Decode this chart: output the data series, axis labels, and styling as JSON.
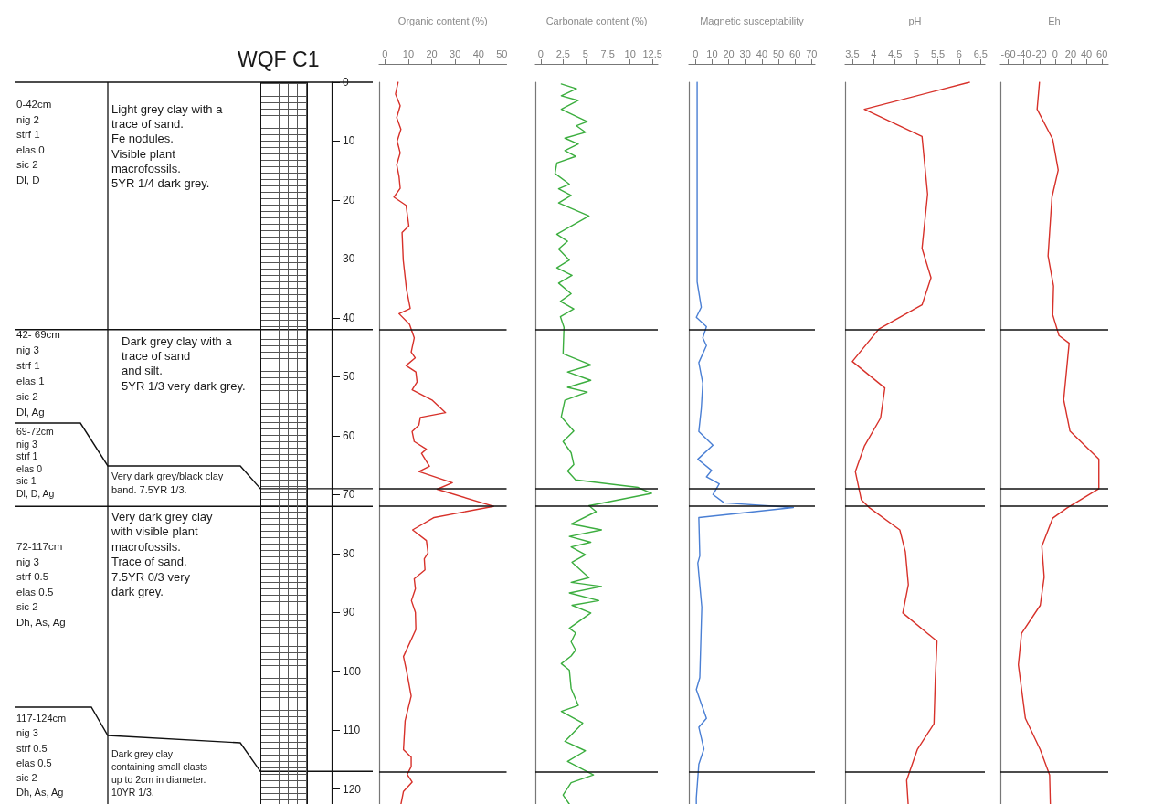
{
  "chart_data": [
    {
      "type": "other",
      "title": "WQF C1",
      "annotations": [
        "0-42cm\nnig 2\nstrf 1\nelas 0\nsic 2\nDl, D",
        "Light grey clay with a\ntrace of sand.\nFe nodules.\nVisible plant\nmacrofossils.\n5YR 1/4 dark grey.",
        "42- 69cm\nnig 3\nstrf 1\nelas 1\nsic 2\nDl, Ag",
        "Dark grey clay with a\ntrace of sand\nand silt.\n5YR 1/3 very dark grey.",
        "69-72cm\nnig 3\nstrf 1\nelas 0\nsic 1\nDl, D, Ag",
        "Very dark grey/black clay\nband. 7.5YR 1/3.",
        "72-117cm\nnig 3\nstrf 0.5\nelas 0.5\nsic 2\nDh, As, Ag",
        "Very dark grey clay\nwith visible plant\nmacrofossils.\nTrace of sand.\n7.5YR 0/3 very\ndark grey.",
        "117-124cm\nnig 3\nstrf 0.5\nelas 0.5\nsic 2\nDh, As, Ag",
        "Dark grey clay\ncontaining small clasts\nup to 2cm in diameter.\n10YR 1/3."
      ]
    },
    {
      "type": "line",
      "orientation": "horizontal",
      "xlabel": "Organic content (%)",
      "xlim": [
        -2.5,
        52
      ],
      "xticks": [
        0,
        10,
        20,
        30,
        40,
        50
      ],
      "ylim": [
        123,
        0
      ],
      "yticks": [
        0,
        10,
        20,
        30,
        40,
        50,
        60,
        70,
        80,
        90,
        100,
        110,
        120
      ],
      "grid": false,
      "ref_lines": [
        {
          "axis": "y",
          "value": 42
        },
        {
          "axis": "y",
          "value": 69
        },
        {
          "axis": "y",
          "value": 72
        },
        {
          "axis": "y",
          "value": 117
        }
      ],
      "series": [
        {
          "color": "#d7312a",
          "x": [
            0,
            2,
            4,
            6,
            8,
            10,
            12,
            14,
            16,
            18,
            19.5,
            20.9,
            24.4,
            25.5,
            30.2,
            35.2,
            38.4,
            39.3,
            41.1,
            43.4,
            45.8,
            46.8,
            48.1,
            49.2,
            50.9,
            52.2,
            54,
            56.1,
            56.9,
            58.2,
            59.3,
            61,
            62.3,
            63,
            65.2,
            66.1,
            68,
            69.1,
            72,
            73.9,
            76,
            77.8,
            79.9,
            80.9,
            82.8,
            84.3,
            86,
            88,
            90,
            92.9,
            97.5,
            100.1,
            104.2,
            108.4,
            113.3,
            114.6,
            116.2,
            117.5,
            118.8,
            120.4,
            123
          ],
          "values": [
            5.6,
            4.5,
            6.5,
            5,
            6.8,
            5.2,
            6.5,
            5,
            6,
            6.5,
            3.8,
            9,
            10.2,
            7.3,
            7.8,
            9.2,
            10.8,
            6,
            10.5,
            12.5,
            11.2,
            12.9,
            9,
            13.2,
            13.7,
            11.6,
            20.3,
            25.9,
            15.1,
            14.5,
            11.6,
            12.5,
            17.7,
            15.6,
            19,
            14.5,
            28.8,
            22.3,
            46.4,
            21,
            11.8,
            17.7,
            18.4,
            16.8,
            17.1,
            12.5,
            13,
            11.3,
            13,
            13.2,
            7.9,
            9.3,
            11.2,
            8.6,
            7.9,
            11.2,
            11.2,
            9.5,
            11.6,
            7.9,
            6.6
          ]
        }
      ]
    },
    {
      "type": "line",
      "orientation": "horizontal",
      "xlabel": "Carbonate content (%)",
      "xlim": [
        -0.6,
        13.1
      ],
      "xticks": [
        0,
        2.5,
        5,
        7.5,
        10,
        12.5
      ],
      "ylim": [
        123,
        0
      ],
      "yticks": [
        0,
        10,
        20,
        30,
        40,
        50,
        60,
        70,
        80,
        90,
        100,
        110,
        120
      ],
      "tick_labels": "x",
      "grid": false,
      "ref_lines": [
        {
          "axis": "y",
          "value": 42
        },
        {
          "axis": "y",
          "value": 69
        },
        {
          "axis": "y",
          "value": 72
        },
        {
          "axis": "y",
          "value": 117
        }
      ],
      "series": [
        {
          "color": "#3cae3f",
          "x": [
            0.3,
            1.1,
            2.3,
            3.1,
            4.6,
            6.7,
            7.4,
            8.5,
            9.5,
            10.5,
            11.6,
            12.6,
            13.7,
            15.5,
            17.3,
            18.1,
            19.2,
            20.5,
            22.7,
            25.8,
            27,
            28.3,
            30.2,
            31.5,
            32.8,
            34.1,
            35.9,
            37.2,
            38.5,
            39.8,
            41.6,
            46.1,
            48,
            49.2,
            50.6,
            51.8,
            52.6,
            54,
            56.8,
            59.2,
            61,
            62.9,
            64.9,
            66,
            67.5,
            68.8,
            69.8,
            71.9,
            72.9,
            75,
            76,
            77.1,
            78.1,
            78.9,
            80.2,
            81.5,
            84.1,
            84.9,
            85.6,
            86.7,
            88,
            88.8,
            90.1,
            92.7,
            93.5,
            95,
            96.4,
            97.4,
            98.7,
            99.8,
            102.9,
            105.8,
            106.8,
            108.8,
            111.9,
            113.5,
            115.3,
            117.6,
            118.9,
            121,
            123
          ],
          "values": [
            2.3,
            4,
            2.3,
            4.2,
            2.3,
            5.2,
            4,
            5,
            2.7,
            4.2,
            2.7,
            3.9,
            1.8,
            1.6,
            3.2,
            2,
            3.4,
            2,
            5.4,
            1.8,
            3,
            2,
            3.2,
            1.8,
            3.5,
            2,
            3.4,
            2.2,
            3.7,
            2.2,
            2.6,
            2.5,
            5.6,
            3,
            5.6,
            3,
            5.2,
            2.7,
            2.3,
            3.7,
            2.5,
            3.4,
            3.7,
            3,
            3.9,
            10.9,
            12.4,
            5.4,
            6.2,
            3.4,
            6.8,
            3.2,
            5.6,
            3.4,
            5,
            3.5,
            5.4,
            3.4,
            6.8,
            3.2,
            6.5,
            3.5,
            5.6,
            3.2,
            3.9,
            3.4,
            3.9,
            3.4,
            2.3,
            3.2,
            3.4,
            4.2,
            2.3,
            4.7,
            2.7,
            5,
            3,
            5.9,
            3.4,
            2.5,
            3.4
          ]
        }
      ]
    },
    {
      "type": "line",
      "orientation": "horizontal",
      "xlabel": "Magnetic susceptability",
      "xlim": [
        -4,
        72
      ],
      "xticks": [
        0,
        10,
        20,
        30,
        40,
        50,
        60,
        70
      ],
      "ylim": [
        123,
        0
      ],
      "yticks": [
        0,
        10,
        20,
        30,
        40,
        50,
        60,
        70,
        80,
        90,
        100,
        110,
        120
      ],
      "tick_labels": "x",
      "grid": false,
      "ref_lines": [
        {
          "axis": "y",
          "value": 42
        },
        {
          "axis": "y",
          "value": 69
        },
        {
          "axis": "y",
          "value": 72
        },
        {
          "axis": "y",
          "value": 117
        }
      ],
      "series": [
        {
          "color": "#4a7fd4",
          "x": [
            0,
            20,
            33.9,
            38.2,
            39.9,
            41.5,
            43.4,
            44.7,
            47.6,
            51.1,
            55.4,
            59.3,
            61.6,
            64,
            65.9,
            67,
            68.2,
            70,
            71.4,
            72.2,
            73.9,
            80.4,
            81.6,
            89.1,
            101.1,
            103.1,
            108,
            109.5,
            113.2,
            115.8,
            121.5,
            123
          ],
          "values": [
            1,
            1,
            1,
            3.5,
            0.5,
            6.6,
            4.4,
            6.6,
            2,
            4.4,
            3.5,
            2,
            10.5,
            1.4,
            9.7,
            6.6,
            14.3,
            10.5,
            17.3,
            59,
            2,
            2.6,
            1.4,
            3.8,
            2.6,
            0.5,
            6.6,
            2,
            5.1,
            2,
            0.5,
            0.5
          ]
        }
      ]
    },
    {
      "type": "line",
      "orientation": "horizontal",
      "xlabel": "pH",
      "xlim": [
        3.33,
        6.6
      ],
      "xticks": [
        3.5,
        4,
        4.5,
        5,
        5.5,
        6,
        6.5
      ],
      "ylim": [
        123,
        0
      ],
      "yticks": [
        0,
        10,
        20,
        30,
        40,
        50,
        60,
        70,
        80,
        90,
        100,
        110,
        120
      ],
      "tick_labels": "x",
      "grid": false,
      "ref_lines": [
        {
          "axis": "y",
          "value": 42
        },
        {
          "axis": "y",
          "value": 69
        },
        {
          "axis": "y",
          "value": 72
        },
        {
          "axis": "y",
          "value": 117
        }
      ],
      "series": [
        {
          "color": "#d7312a",
          "x": [
            0,
            4.6,
            9.2,
            19,
            28.2,
            33.2,
            37.8,
            41.9,
            47.4,
            51.9,
            57,
            61.8,
            66.1,
            70.9,
            72.3,
            76,
            79.7,
            85.3,
            90.1,
            94.9,
            101.5,
            108.9,
            113.3,
            118.5,
            123
          ],
          "values": [
            6.24,
            3.78,
            5.13,
            5.26,
            5.13,
            5.34,
            5.13,
            4.12,
            3.5,
            4.26,
            4.16,
            3.78,
            3.57,
            3.71,
            3.91,
            4.61,
            4.74,
            4.81,
            4.68,
            5.48,
            5.44,
            5.41,
            5.02,
            4.77,
            4.81
          ]
        }
      ]
    },
    {
      "type": "line",
      "orientation": "horizontal",
      "xlabel": "Eh",
      "xlim": [
        -70,
        68
      ],
      "xticks": [
        -60,
        -40,
        -20,
        0,
        20,
        40,
        60
      ],
      "ylim": [
        123,
        0
      ],
      "yticks": [
        0,
        10,
        20,
        30,
        40,
        50,
        60,
        70,
        80,
        90,
        100,
        110,
        120
      ],
      "tick_labels": "x",
      "grid": false,
      "ref_lines": [
        {
          "axis": "y",
          "value": 42
        },
        {
          "axis": "y",
          "value": 69
        },
        {
          "axis": "y",
          "value": 72
        },
        {
          "axis": "y",
          "value": 117
        }
      ],
      "series": [
        {
          "color": "#d7312a",
          "x": [
            0,
            4.6,
            9.7,
            14.9,
            19.5,
            29.5,
            34.6,
            39.5,
            43,
            44.3,
            53.9,
            59.2,
            64,
            69,
            72.3,
            74,
            78.8,
            84,
            88.8,
            93.6,
            98.9,
            108,
            113.3,
            117.6,
            123
          ],
          "values": [
            -20,
            -23,
            -3,
            4,
            -4,
            -9,
            -2,
            -3,
            5,
            18,
            11,
            19,
            56,
            56,
            15,
            -3,
            -17,
            -14,
            -19,
            -43,
            -47,
            -38,
            -19,
            -7,
            -6
          ]
        }
      ]
    }
  ]
}
